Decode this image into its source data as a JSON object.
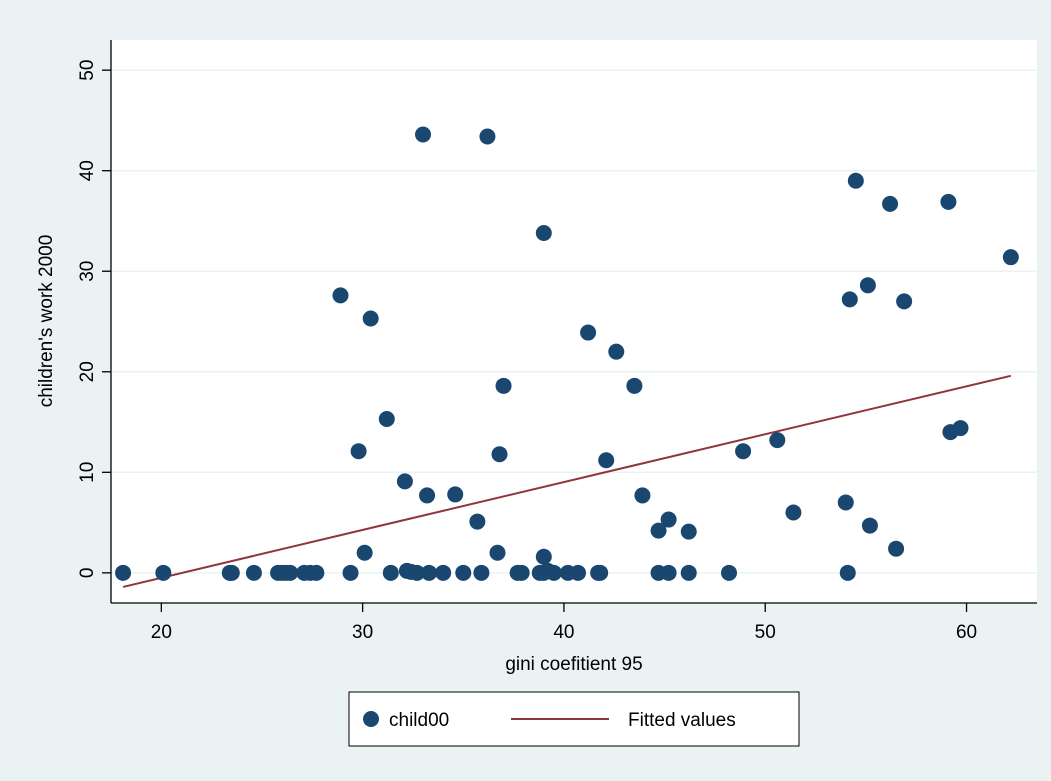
{
  "chart_data": {
    "type": "scatter",
    "xlabel": "gini coefitient 95",
    "ylabel": "children's work 2000",
    "xlim": [
      17.5,
      63.5
    ],
    "ylim": [
      -3,
      53
    ],
    "x_ticks": [
      20,
      30,
      40,
      50,
      60
    ],
    "y_ticks": [
      0,
      10,
      20,
      30,
      40,
      50
    ],
    "grid": "horizontal",
    "legend_position": "bottom",
    "colors": {
      "background": "#eaf2f3",
      "plot_area": "#ffffff",
      "marker": "#1a476f",
      "fit_line": "#90353b"
    },
    "series": [
      {
        "name": "child00",
        "kind": "scatter",
        "x": [
          18.1,
          20.1,
          23.4,
          23.5,
          24.6,
          25.8,
          26.0,
          26.2,
          26.4,
          27.1,
          27.4,
          27.7,
          29.4,
          31.4,
          32.2,
          32.4,
          32.7,
          33.3,
          34.0,
          35.0,
          35.9,
          37.7,
          37.9,
          38.8,
          39.0,
          39.2,
          39.5,
          40.2,
          40.7,
          41.7,
          41.8,
          44.7,
          45.2,
          46.2,
          48.2,
          54.1,
          30.1,
          36.7,
          39.0,
          33.0,
          36.2,
          39.0,
          28.9,
          30.4,
          31.2,
          29.8,
          32.1,
          33.2,
          34.6,
          35.7,
          36.8,
          37.0,
          41.2,
          42.6,
          42.1,
          43.5,
          43.9,
          44.7,
          45.2,
          46.2,
          48.9,
          50.6,
          51.4,
          54.0,
          55.2,
          56.5,
          54.2,
          55.1,
          56.9,
          54.5,
          56.2,
          59.1,
          59.2,
          59.7,
          62.2
        ],
        "y": [
          0,
          0,
          0,
          0,
          0,
          0,
          0,
          0,
          0,
          0,
          0,
          0,
          0,
          0,
          0.2,
          0.1,
          0,
          0,
          0,
          0,
          0,
          0,
          0,
          0,
          0,
          0.2,
          0,
          0,
          0,
          0,
          0,
          0,
          0,
          0,
          0,
          0,
          2.0,
          2.0,
          1.6,
          43.6,
          43.4,
          33.8,
          27.6,
          25.3,
          15.3,
          12.1,
          9.1,
          7.7,
          7.8,
          5.1,
          11.8,
          18.6,
          23.9,
          22.0,
          11.2,
          18.6,
          7.7,
          4.2,
          5.3,
          4.1,
          12.1,
          13.2,
          6.0,
          7.0,
          4.7,
          2.4,
          27.2,
          28.6,
          27.0,
          39.0,
          36.7,
          36.9,
          14.0,
          14.4,
          31.4
        ]
      },
      {
        "name": "Fitted values",
        "kind": "line",
        "x": [
          18.1,
          62.2
        ],
        "y": [
          -1.4,
          19.6
        ]
      }
    ]
  }
}
